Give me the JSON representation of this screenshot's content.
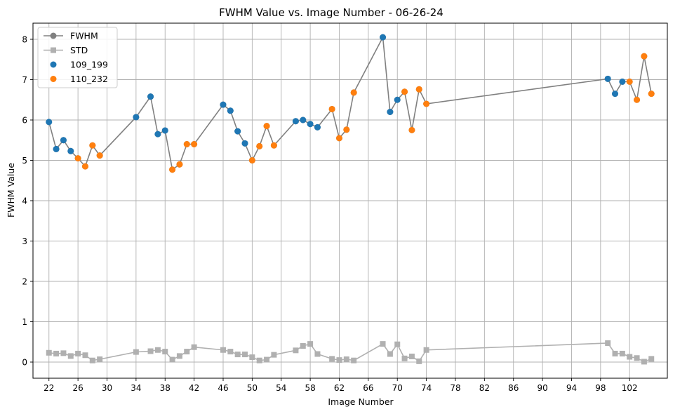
{
  "chart_data": {
    "type": "line",
    "title": "FWHM Value vs. Image Number - 06-26-24",
    "xlabel": "Image Number",
    "ylabel": "FWHM Value",
    "xlim": [
      19.8,
      107.2
    ],
    "ylim": [
      -0.4,
      8.4
    ],
    "xticks": [
      22,
      26,
      30,
      34,
      38,
      42,
      46,
      50,
      54,
      58,
      62,
      66,
      70,
      74,
      78,
      82,
      86,
      90,
      94,
      98,
      102
    ],
    "yticks": [
      0,
      1,
      2,
      3,
      4,
      5,
      6,
      7,
      8
    ],
    "grid": true,
    "legend_position": "top-left",
    "x": [
      22,
      23,
      24,
      25,
      26,
      27,
      28,
      29,
      34,
      36,
      37,
      38,
      39,
      40,
      41,
      42,
      46,
      47,
      48,
      49,
      50,
      51,
      52,
      53,
      56,
      57,
      58,
      59,
      61,
      62,
      63,
      64,
      68,
      69,
      70,
      71,
      72,
      73,
      74,
      99,
      100,
      101,
      102,
      103,
      104,
      105
    ],
    "series": [
      {
        "name": "FWHM",
        "kind": "line",
        "color": "#808080",
        "marker": "circle",
        "values": [
          5.95,
          5.28,
          5.5,
          5.23,
          5.05,
          4.85,
          5.37,
          5.12,
          6.07,
          6.58,
          5.65,
          5.74,
          4.77,
          4.9,
          5.4,
          5.4,
          6.38,
          6.23,
          5.72,
          5.42,
          5.0,
          5.35,
          5.85,
          5.37,
          5.97,
          6.0,
          5.9,
          5.82,
          6.27,
          5.55,
          5.76,
          6.68,
          8.05,
          6.2,
          6.5,
          6.7,
          5.75,
          6.76,
          6.4,
          7.02,
          6.65,
          6.95,
          6.95,
          6.5,
          7.58,
          6.65
        ]
      },
      {
        "name": "STD",
        "kind": "line",
        "color": "#b0b0b0",
        "marker": "square",
        "values": [
          0.23,
          0.21,
          0.22,
          0.15,
          0.21,
          0.17,
          0.04,
          0.07,
          0.25,
          0.27,
          0.3,
          0.26,
          0.06,
          0.15,
          0.26,
          0.37,
          0.3,
          0.26,
          0.19,
          0.19,
          0.12,
          0.04,
          0.06,
          0.18,
          0.29,
          0.4,
          0.45,
          0.2,
          0.08,
          0.05,
          0.07,
          0.04,
          0.45,
          0.2,
          0.44,
          0.09,
          0.14,
          0.02,
          0.3,
          0.47,
          0.21,
          0.21,
          0.13,
          0.1,
          0.01,
          0.08
        ]
      },
      {
        "name": "109_199",
        "kind": "scatter",
        "color": "#1f77b4",
        "points": [
          [
            22,
            5.95
          ],
          [
            23,
            5.28
          ],
          [
            24,
            5.5
          ],
          [
            25,
            5.23
          ],
          [
            34,
            6.07
          ],
          [
            36,
            6.58
          ],
          [
            37,
            5.65
          ],
          [
            38,
            5.74
          ],
          [
            46,
            6.38
          ],
          [
            47,
            6.23
          ],
          [
            48,
            5.72
          ],
          [
            49,
            5.42
          ],
          [
            56,
            5.97
          ],
          [
            57,
            6.0
          ],
          [
            58,
            5.9
          ],
          [
            59,
            5.82
          ],
          [
            68,
            8.05
          ],
          [
            69,
            6.2
          ],
          [
            70,
            6.5
          ],
          [
            99,
            7.02
          ],
          [
            100,
            6.65
          ],
          [
            101,
            6.95
          ]
        ]
      },
      {
        "name": "110_232",
        "kind": "scatter",
        "color": "#ff7f0e",
        "points": [
          [
            26,
            5.05
          ],
          [
            27,
            4.85
          ],
          [
            28,
            5.37
          ],
          [
            29,
            5.12
          ],
          [
            39,
            4.77
          ],
          [
            40,
            4.9
          ],
          [
            41,
            5.4
          ],
          [
            42,
            5.4
          ],
          [
            50,
            5.0
          ],
          [
            51,
            5.35
          ],
          [
            52,
            5.85
          ],
          [
            53,
            5.37
          ],
          [
            61,
            6.27
          ],
          [
            62,
            5.55
          ],
          [
            63,
            5.76
          ],
          [
            64,
            6.68
          ],
          [
            71,
            6.7
          ],
          [
            72,
            5.75
          ],
          [
            73,
            6.76
          ],
          [
            74,
            6.4
          ],
          [
            102,
            6.95
          ],
          [
            103,
            6.5
          ],
          [
            104,
            7.58
          ],
          [
            105,
            6.65
          ]
        ]
      }
    ]
  }
}
